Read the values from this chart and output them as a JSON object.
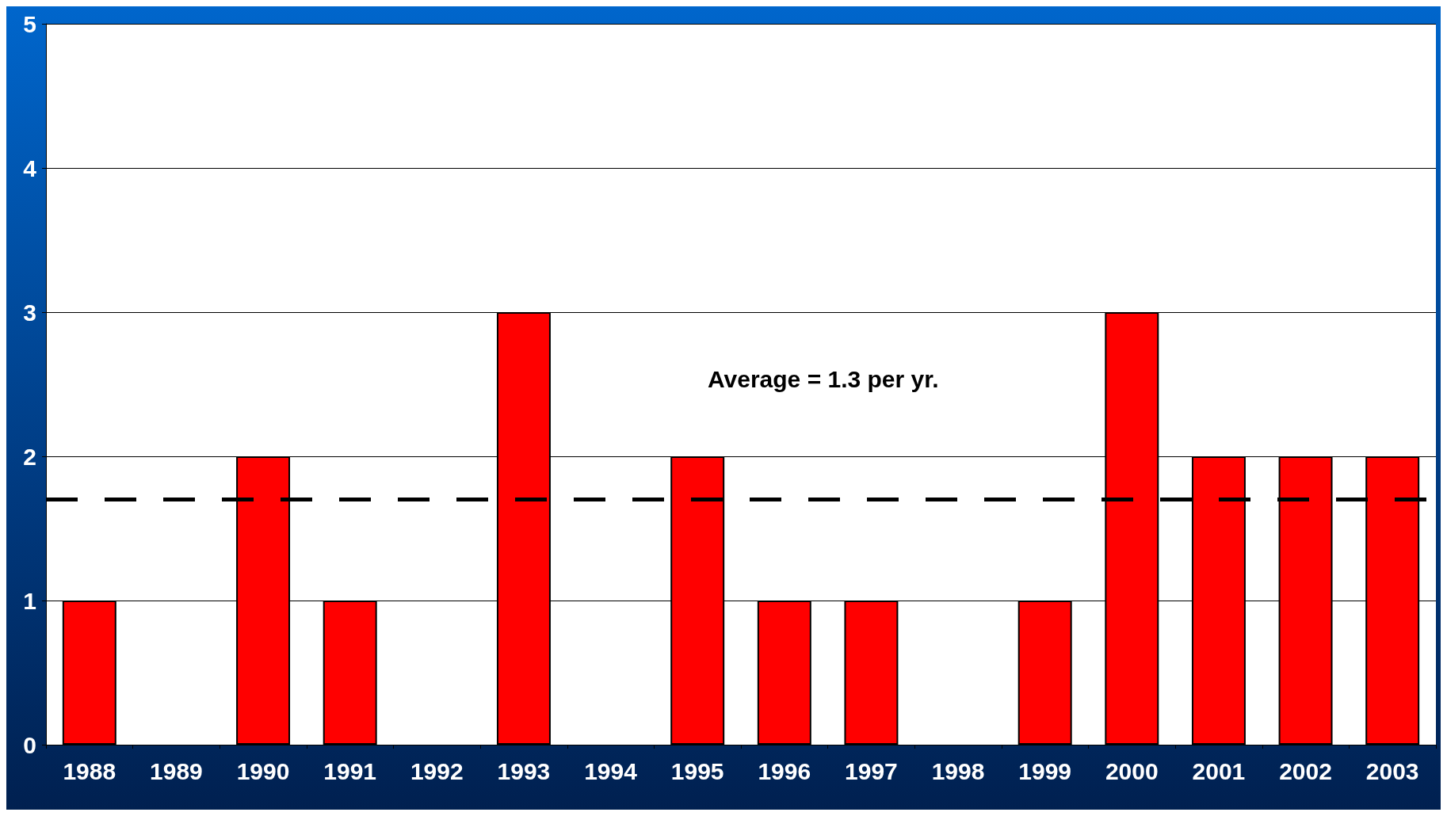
{
  "chart_data": {
    "type": "bar",
    "categories": [
      "1988",
      "1989",
      "1990",
      "1991",
      "1992",
      "1993",
      "1994",
      "1995",
      "1996",
      "1997",
      "1998",
      "1999",
      "2000",
      "2001",
      "2002",
      "2003"
    ],
    "values": [
      1,
      0,
      2,
      1,
      0,
      3,
      0,
      2,
      1,
      1,
      0,
      1,
      3,
      2,
      2,
      2
    ],
    "color": "#ff0000",
    "ylim": [
      0,
      5
    ],
    "yticks": [
      0,
      1,
      2,
      3,
      4,
      5
    ],
    "grid": "y",
    "annotations": [
      "Average = 1.3 per yr."
    ],
    "ref_lines": [
      {
        "axis": "y",
        "value": 1.7,
        "color": "#000000",
        "line_style": "dashed"
      }
    ]
  }
}
